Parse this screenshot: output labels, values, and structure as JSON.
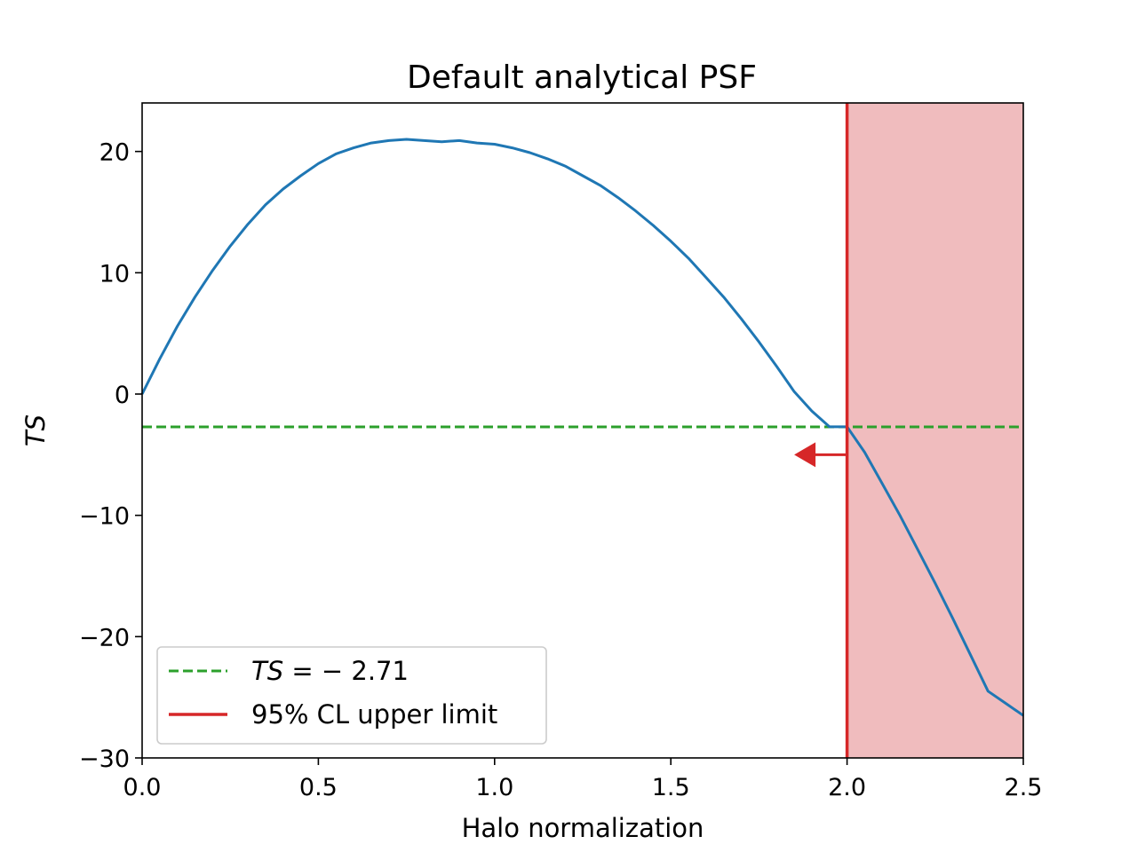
{
  "chart_data": {
    "type": "line",
    "title": "Default analytical PSF",
    "xlabel": "Halo normalization",
    "ylabel": "TS",
    "xlim": [
      0.0,
      2.5
    ],
    "ylim": [
      -30,
      24
    ],
    "x_ticks": [
      0.0,
      0.5,
      1.0,
      1.5,
      2.0,
      2.5
    ],
    "x_tick_labels": [
      "0.0",
      "0.5",
      "1.0",
      "1.5",
      "2.0",
      "2.5"
    ],
    "y_ticks": [
      -30,
      -20,
      -10,
      0,
      10,
      20
    ],
    "y_tick_labels": [
      "−30",
      "−20",
      "−10",
      "0",
      "10",
      "20"
    ],
    "grid": false,
    "legend_position": "lower-left",
    "series": [
      {
        "color": "#1f77b4",
        "style": "solid",
        "x": [
          0.0,
          0.05,
          0.1,
          0.15,
          0.2,
          0.25,
          0.3,
          0.35,
          0.4,
          0.45,
          0.5,
          0.55,
          0.6,
          0.65,
          0.7,
          0.75,
          0.8,
          0.85,
          0.9,
          0.95,
          1.0,
          1.05,
          1.1,
          1.15,
          1.2,
          1.25,
          1.3,
          1.35,
          1.4,
          1.45,
          1.5,
          1.55,
          1.6,
          1.65,
          1.7,
          1.75,
          1.8,
          1.85,
          1.9,
          1.95,
          2.0,
          2.05,
          2.1,
          2.15,
          2.2,
          2.25,
          2.3,
          2.35,
          2.4,
          2.45,
          2.5
        ],
        "y": [
          0.0,
          2.9,
          5.6,
          8.0,
          10.2,
          12.2,
          14.0,
          15.6,
          16.9,
          18.0,
          19.0,
          19.8,
          20.3,
          20.7,
          20.9,
          21.0,
          20.9,
          20.8,
          20.9,
          20.7,
          20.6,
          20.3,
          19.9,
          19.4,
          18.8,
          18.0,
          17.2,
          16.2,
          15.1,
          13.9,
          12.6,
          11.2,
          9.6,
          8.0,
          6.2,
          4.3,
          2.3,
          0.2,
          -1.4,
          -2.7,
          -2.7,
          -4.8,
          -7.4,
          -10.0,
          -12.8,
          -15.6,
          -18.5,
          -21.5,
          -24.5,
          -25.5,
          -26.5
        ]
      },
      {
        "name": "TS = −2.71",
        "color": "#2ca02c",
        "style": "dashed",
        "y_const": -2.71
      },
      {
        "name": "95% CL upper limit",
        "color": "#d62728",
        "style": "solid",
        "x_const": 2.0
      }
    ],
    "excluded_region": {
      "x_from": 2.0,
      "x_to": 2.5,
      "color": "#f0bcbe"
    },
    "arrow": {
      "x_from": 2.0,
      "x_to": 1.85,
      "y": -5.0,
      "color": "#d62728"
    },
    "legend": [
      {
        "prefix": "TS",
        "suffix": " = − 2.71",
        "color": "#2ca02c",
        "style": "dashed"
      },
      {
        "prefix": "",
        "suffix": "95% CL upper limit",
        "color": "#d62728",
        "style": "solid"
      }
    ]
  }
}
